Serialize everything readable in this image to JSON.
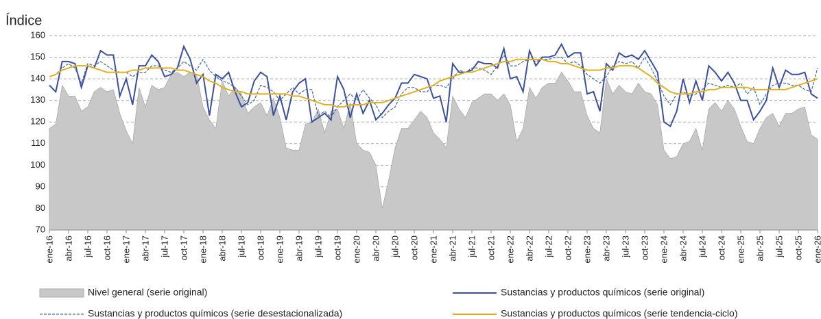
{
  "chart_data": {
    "type": "line",
    "y_label": "Índice",
    "categories": [
      "ene-16",
      null,
      null,
      "abr-16",
      null,
      null,
      "jul-16",
      null,
      null,
      "oct-16",
      null,
      null,
      "ene-17",
      null,
      null,
      "abr-17",
      null,
      null,
      "jul-17",
      null,
      null,
      "oct-17",
      null,
      null,
      "ene-18",
      null,
      null,
      "abr-18",
      null,
      null,
      "jul-18",
      null,
      null,
      "oct-18",
      null,
      null,
      "ene-19",
      null,
      null,
      "abr-19",
      null,
      null,
      "jul-19",
      null,
      null,
      "oct-19",
      null,
      null,
      "ene-20",
      null,
      null,
      "abr-20",
      null,
      null,
      "jul-20",
      null,
      null,
      "oct-20",
      null,
      null,
      "ene-21",
      null,
      null,
      "abr-21",
      null,
      null,
      "jul-21",
      null,
      null,
      "oct-21",
      null,
      null,
      "ene-22",
      null,
      null,
      "abr-22",
      null,
      null,
      "jul-22",
      null,
      null,
      "oct-22",
      null,
      null,
      "ene-23",
      null,
      null,
      "abr-23",
      null,
      null,
      "jul-23",
      null,
      null,
      "oct-23",
      null,
      null,
      "ene-24",
      null,
      null,
      "abr-24",
      null,
      null,
      "jul-24",
      null,
      null,
      "oct-24",
      null,
      null,
      "ene-25",
      null,
      null,
      "abr-25",
      null,
      null,
      "jul-25",
      null,
      null,
      "oct-25",
      null,
      null,
      "ene-26"
    ],
    "series": [
      {
        "name": "Nivel general (serie original)",
        "style": "area",
        "color": "#c8c8c8",
        "values": [
          117,
          119,
          137,
          132,
          132,
          125,
          127,
          134,
          136,
          134,
          135,
          124,
          116,
          110,
          136,
          127,
          137,
          135,
          136,
          142,
          143,
          141,
          143,
          142,
          127,
          121,
          117,
          139,
          132,
          136,
          133,
          124,
          127,
          129,
          123,
          131,
          122,
          108,
          107,
          107,
          119,
          120,
          126,
          115,
          125,
          126,
          117,
          129,
          110,
          107,
          106,
          100,
          80,
          93,
          108,
          117,
          117,
          121,
          125,
          122,
          115,
          112,
          108,
          132,
          126,
          122,
          129,
          131,
          133,
          133,
          130,
          133,
          128,
          111,
          117,
          136,
          131,
          136,
          138,
          138,
          143,
          139,
          134,
          134,
          123,
          117,
          115,
          140,
          133,
          137,
          134,
          133,
          138,
          134,
          133,
          128,
          107,
          103,
          104,
          110,
          111,
          117,
          107,
          126,
          129,
          125,
          130,
          126,
          118,
          111,
          110,
          117,
          122,
          124,
          118,
          124,
          124,
          126,
          127,
          114,
          112
        ]
      },
      {
        "name": "Sustancias y productos químicos (serie original)",
        "style": "solid",
        "color": "#3a4fa0",
        "values": [
          137,
          134,
          148,
          148,
          147,
          136,
          146,
          145,
          153,
          151,
          151,
          132,
          140,
          128,
          146,
          146,
          151,
          148,
          141,
          142,
          145,
          155,
          149,
          138,
          142,
          123,
          142,
          140,
          143,
          134,
          127,
          129,
          139,
          143,
          141,
          123,
          132,
          121,
          134,
          138,
          140,
          120,
          122,
          124,
          121,
          141,
          135,
          122,
          133,
          124,
          130,
          121,
          124,
          128,
          131,
          138,
          138,
          142,
          141,
          140,
          131,
          132,
          120,
          147,
          143,
          143,
          144,
          148,
          147,
          147,
          145,
          154,
          140,
          141,
          134,
          153,
          146,
          150,
          150,
          151,
          156,
          150,
          152,
          152,
          133,
          134,
          125,
          147,
          144,
          152,
          150,
          151,
          149,
          153,
          148,
          143,
          120,
          118,
          125,
          140,
          129,
          139,
          130,
          146,
          143,
          139,
          143,
          138,
          130,
          130,
          121,
          125,
          130,
          145,
          136,
          144,
          142,
          142,
          143,
          133,
          131
        ]
      },
      {
        "name": "Sustancias y productos químicos (serie desestacionalizada)",
        "style": "dashed",
        "color": "#4a6f9f",
        "values": [
          141,
          142,
          145,
          147,
          145,
          138,
          147,
          146,
          148,
          146,
          144,
          143,
          143,
          141,
          143,
          143,
          146,
          146,
          144,
          143,
          145,
          148,
          146,
          144,
          149,
          144,
          141,
          139,
          138,
          136,
          132,
          128,
          130,
          137,
          136,
          134,
          130,
          133,
          136,
          133,
          135,
          135,
          123,
          125,
          122,
          127,
          130,
          133,
          130,
          135,
          131,
          128,
          122,
          125,
          127,
          133,
          136,
          136,
          134,
          134,
          137,
          137,
          136,
          140,
          144,
          143,
          145,
          145,
          144,
          142,
          146,
          151,
          146,
          146,
          148,
          149,
          148,
          149,
          149,
          150,
          150,
          147,
          148,
          146,
          142,
          140,
          138,
          141,
          146,
          148,
          147,
          148,
          145,
          150,
          145,
          139,
          132,
          128,
          133,
          134,
          132,
          133,
          135,
          138,
          137,
          136,
          137,
          136,
          138,
          133,
          136,
          128,
          133,
          137,
          138,
          138,
          137,
          137,
          135,
          134,
          145
        ]
      },
      {
        "name": "Sustancias y productos químicos (serie tendencia-ciclo)",
        "style": "solid",
        "color": "#e0b020",
        "values": [
          141,
          142,
          144,
          145,
          146,
          146,
          146,
          145,
          144,
          143,
          143,
          143,
          143,
          144,
          144,
          145,
          145,
          145,
          145,
          145,
          144,
          144,
          143,
          142,
          141,
          139,
          138,
          136,
          135,
          134,
          134,
          133,
          133,
          133,
          133,
          133,
          133,
          133,
          132,
          132,
          131,
          130,
          129,
          128,
          128,
          127,
          127,
          128,
          128,
          128,
          129,
          129,
          129,
          130,
          131,
          132,
          133,
          134,
          135,
          136,
          137,
          139,
          140,
          141,
          142,
          143,
          143,
          144,
          145,
          146,
          147,
          148,
          148,
          149,
          149,
          149,
          149,
          149,
          148,
          148,
          147,
          147,
          146,
          145,
          144,
          144,
          144,
          145,
          145,
          146,
          146,
          146,
          145,
          143,
          141,
          138,
          136,
          134,
          133,
          133,
          133,
          134,
          134,
          135,
          135,
          136,
          136,
          136,
          136,
          136,
          135,
          135,
          135,
          135,
          135,
          135,
          136,
          137,
          138,
          139,
          140
        ]
      }
    ],
    "ylim": [
      70,
      160
    ],
    "yticks": [
      70,
      80,
      90,
      100,
      110,
      120,
      130,
      140,
      150,
      160
    ],
    "grid": true
  }
}
